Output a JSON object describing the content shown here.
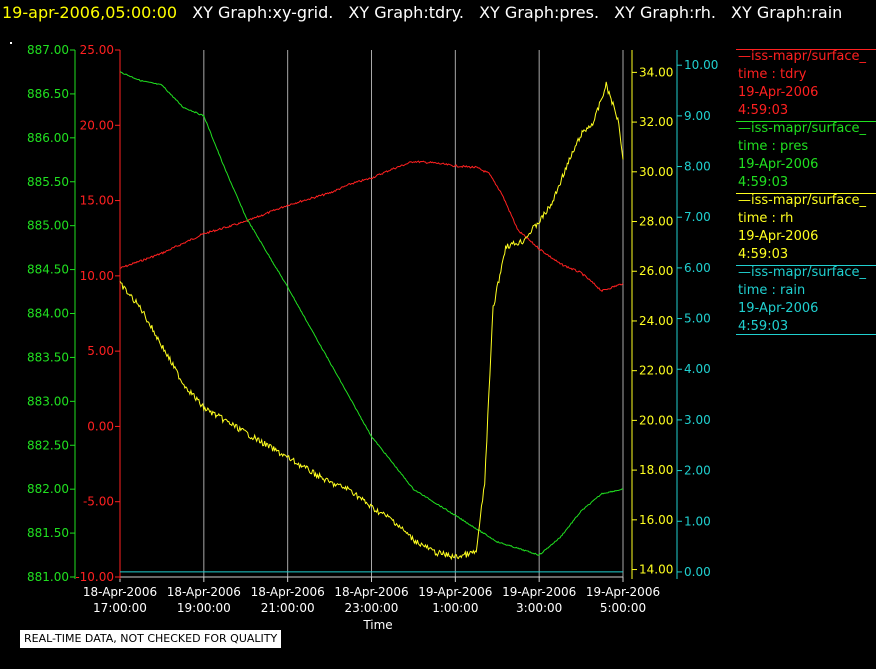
{
  "header": {
    "timestamp": "19-apr-2006,05:00:00",
    "graphs": [
      "XY Graph:xy-grid.",
      "XY Graph:tdry.",
      "XY Graph:pres.",
      "XY Graph:rh.",
      "XY Graph:rain"
    ]
  },
  "legend": [
    {
      "source": "—iss-mapr/surface_",
      "var": "time : tdry",
      "date": "19-Apr-2006",
      "time": "4:59:03",
      "color": "#ff2020"
    },
    {
      "source": "—iss-mapr/surface_",
      "var": "time : pres",
      "date": "19-Apr-2006",
      "time": "4:59:03",
      "color": "#20e020"
    },
    {
      "source": "—iss-mapr/surface_",
      "var": "time : rh",
      "date": "19-Apr-2006",
      "time": "4:59:03",
      "color": "#ffff20"
    },
    {
      "source": "—iss-mapr/surface_",
      "var": "time : rain",
      "date": "19-Apr-2006",
      "time": "4:59:03",
      "color": "#20d0d0"
    }
  ],
  "quality_note": "REAL-TIME DATA, NOT CHECKED FOR QUALITY",
  "chart_data": {
    "type": "line",
    "xlabel": "Time",
    "x_ticks": [
      {
        "date": "18-Apr-2006",
        "time": "17:00:00",
        "hour": 17
      },
      {
        "date": "18-Apr-2006",
        "time": "19:00:00",
        "hour": 19
      },
      {
        "date": "18-Apr-2006",
        "time": "21:00:00",
        "hour": 21
      },
      {
        "date": "18-Apr-2006",
        "time": "23:00:00",
        "hour": 23
      },
      {
        "date": "19-Apr-2006",
        "time": "1:00:00",
        "hour": 25
      },
      {
        "date": "19-Apr-2006",
        "time": "3:00:00",
        "hour": 27
      },
      {
        "date": "19-Apr-2006",
        "time": "5:00:00",
        "hour": 29
      }
    ],
    "xlim_hours": [
      17,
      29
    ],
    "grid": true,
    "axes": [
      {
        "id": "pres",
        "color": "#20e020",
        "range": [
          881.0,
          887.0
        ],
        "ticks": [
          "881.00",
          "881.50",
          "882.00",
          "882.50",
          "883.00",
          "883.50",
          "884.00",
          "884.50",
          "885.00",
          "885.50",
          "886.00",
          "886.50",
          "887.00"
        ]
      },
      {
        "id": "tdry",
        "color": "#ff2020",
        "range": [
          -10.0,
          25.0
        ],
        "ticks": [
          "-10.00",
          "-5.00",
          "0.00",
          "5.00",
          "10.00",
          "15.00",
          "20.00",
          "25.00"
        ]
      },
      {
        "id": "rh",
        "color": "#ffff20",
        "range": [
          13.7,
          34.9
        ],
        "ticks": [
          "14.00",
          "16.00",
          "18.00",
          "20.00",
          "22.00",
          "24.00",
          "26.00",
          "28.00",
          "30.00",
          "32.00",
          "34.00"
        ]
      },
      {
        "id": "rain",
        "color": "#20d0d0",
        "range": [
          -0.1,
          10.3
        ],
        "ticks": [
          "0.00",
          "1.00",
          "2.00",
          "3.00",
          "4.00",
          "5.00",
          "6.00",
          "7.00",
          "8.00",
          "9.00",
          "10.00"
        ]
      }
    ],
    "series": [
      {
        "axis": "tdry",
        "color": "#ff2020",
        "x": [
          17.0,
          18.0,
          19.0,
          20.0,
          21.0,
          22.0,
          22.5,
          23.0,
          23.5,
          24.0,
          24.5,
          25.0,
          25.5,
          25.8,
          26.1,
          26.5,
          27.0,
          27.5,
          28.0,
          28.5,
          29.0
        ],
        "y": [
          10.5,
          11.5,
          12.8,
          13.6,
          14.7,
          15.5,
          16.1,
          16.5,
          17.1,
          17.6,
          17.5,
          17.3,
          17.2,
          16.8,
          15.5,
          13.0,
          11.8,
          10.8,
          10.2,
          9.0,
          9.5
        ]
      },
      {
        "axis": "pres",
        "color": "#20e020",
        "x": [
          17.0,
          17.5,
          18.0,
          18.5,
          19.0,
          19.5,
          20.0,
          21.0,
          22.0,
          23.0,
          24.0,
          25.0,
          26.0,
          27.0,
          27.5,
          28.0,
          28.5,
          29.0
        ],
        "y": [
          886.75,
          886.65,
          886.6,
          886.35,
          886.25,
          885.65,
          885.1,
          884.3,
          883.45,
          882.6,
          882.0,
          881.7,
          881.4,
          881.25,
          881.45,
          881.75,
          881.95,
          882.0
        ]
      },
      {
        "axis": "rh",
        "color": "#ffff20",
        "x": [
          17.0,
          17.5,
          18.0,
          18.5,
          19.0,
          19.5,
          20.0,
          20.5,
          21.0,
          21.5,
          22.0,
          22.5,
          23.0,
          23.5,
          24.0,
          24.5,
          25.0,
          25.5,
          25.7,
          25.9,
          26.2,
          26.6,
          27.0,
          27.3,
          27.6,
          28.0,
          28.3,
          28.6,
          28.9,
          29.0
        ],
        "y": [
          25.5,
          24.5,
          23.0,
          21.5,
          20.5,
          20.0,
          19.5,
          19.0,
          18.5,
          18.0,
          17.5,
          17.2,
          16.5,
          16.0,
          15.2,
          14.7,
          14.5,
          14.7,
          17.5,
          24.5,
          27.0,
          27.2,
          28.0,
          28.7,
          30.0,
          31.5,
          32.0,
          33.5,
          32.0,
          30.5
        ]
      },
      {
        "axis": "rain",
        "color": "#20d0d0",
        "x": [
          17.0,
          29.0
        ],
        "y": [
          0.0,
          0.0
        ]
      }
    ]
  }
}
